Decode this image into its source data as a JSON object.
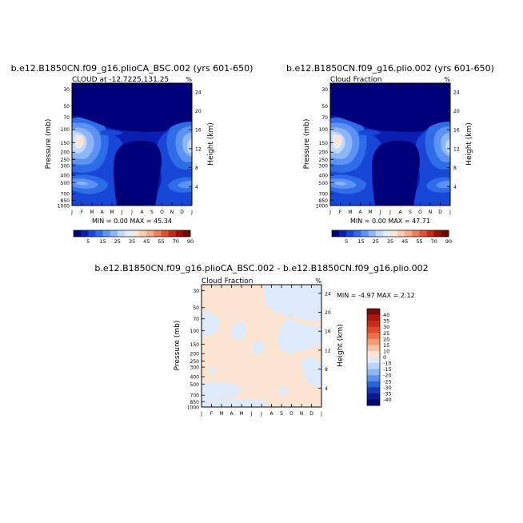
{
  "chart_data": [
    {
      "type": "heatmap",
      "title": "b.e12.B1850CN.f09_g16.plioCA_BSC.002 (yrs 601-650)",
      "subtitle": "CLOUD at -12.7225,131.25",
      "units": "%",
      "ylabel_left": "Pressure (mb)",
      "ylabel_right": "Height (km)",
      "x_ticks": [
        "J",
        "F",
        "M",
        "A",
        "M",
        "J",
        "J",
        "A",
        "S",
        "O",
        "N",
        "D",
        "J"
      ],
      "pressure_ticks": [
        30,
        50,
        70,
        100,
        150,
        200,
        250,
        300,
        400,
        500,
        700,
        850,
        1000
      ],
      "height_ticks": [
        4,
        8,
        12,
        16,
        20,
        24
      ],
      "ylim_mb": [
        1000,
        25
      ],
      "minmax": "MIN =    0.00 MAX =   45.34",
      "min": 0.0,
      "max": 45.34,
      "colorbar_labels": [
        "5",
        "15",
        "25",
        "35",
        "45",
        "55",
        "70",
        "90"
      ],
      "colorbar_colors": [
        "#00007a",
        "#0a1fb0",
        "#1747d6",
        "#2f6ce8",
        "#5b92f3",
        "#8db6f8",
        "#bfd8fc",
        "#e1ecfc",
        "#fbe6d6",
        "#f9ccae",
        "#f6a983",
        "#ee7d58",
        "#e0502f",
        "#c32a17",
        "#981008",
        "#6e0a04"
      ]
    },
    {
      "type": "heatmap",
      "title": "b.e12.B1850CN.f09_g16.plio.002 (yrs 601-650)",
      "subtitle": "Cloud Fraction",
      "units": "%",
      "ylabel_left": "Pressure (mb)",
      "ylabel_right": "Height (km)",
      "x_ticks": [
        "J",
        "F",
        "M",
        "A",
        "M",
        "J",
        "J",
        "A",
        "S",
        "O",
        "N",
        "D",
        "J"
      ],
      "pressure_ticks": [
        30,
        50,
        70,
        100,
        150,
        200,
        250,
        300,
        400,
        500,
        700,
        850,
        1000
      ],
      "height_ticks": [
        4,
        8,
        12,
        16,
        20,
        24
      ],
      "ylim_mb": [
        1000,
        25
      ],
      "minmax": "MIN =    0.00 MAX =   47.71",
      "min": 0.0,
      "max": 47.71,
      "colorbar_labels": [
        "5",
        "15",
        "25",
        "35",
        "45",
        "55",
        "70",
        "90"
      ]
    },
    {
      "type": "heatmap",
      "title": "b.e12.B1850CN.f09_g16.plioCA_BSC.002 - b.e12.B1850CN.f09_g16.plio.002",
      "subtitle": "Cloud Fraction",
      "units": "%",
      "ylabel_left": "Pressure (mb)",
      "ylabel_right": "Height (km)",
      "x_ticks": [
        "J",
        "F",
        "M",
        "A",
        "M",
        "J",
        "J",
        "A",
        "S",
        "O",
        "N",
        "D",
        "J"
      ],
      "pressure_ticks": [
        30,
        50,
        70,
        100,
        150,
        200,
        250,
        300,
        400,
        500,
        700,
        850,
        1000
      ],
      "height_ticks": [
        4,
        8,
        12,
        16,
        20,
        24
      ],
      "ylim_mb": [
        1000,
        25
      ],
      "minmax": "MIN =   -4.97 MAX =    2.12",
      "min": -4.97,
      "max": 2.12,
      "colorbar_labels": [
        "40",
        "35",
        "30",
        "25",
        "20",
        "15",
        "10",
        "0",
        "-10",
        "-15",
        "-20",
        "-25",
        "-30",
        "-35",
        "-40"
      ],
      "colorbar_colors": [
        "#7a0a05",
        "#b0170c",
        "#cc2a16",
        "#e04a28",
        "#ee7048",
        "#f49a72",
        "#f8c0a0",
        "#fce4d2",
        "#dceafc",
        "#b7d3fb",
        "#8bb5f5",
        "#5d8fea",
        "#2d62d8",
        "#1638b6",
        "#0a1994",
        "#040a6e"
      ]
    }
  ]
}
